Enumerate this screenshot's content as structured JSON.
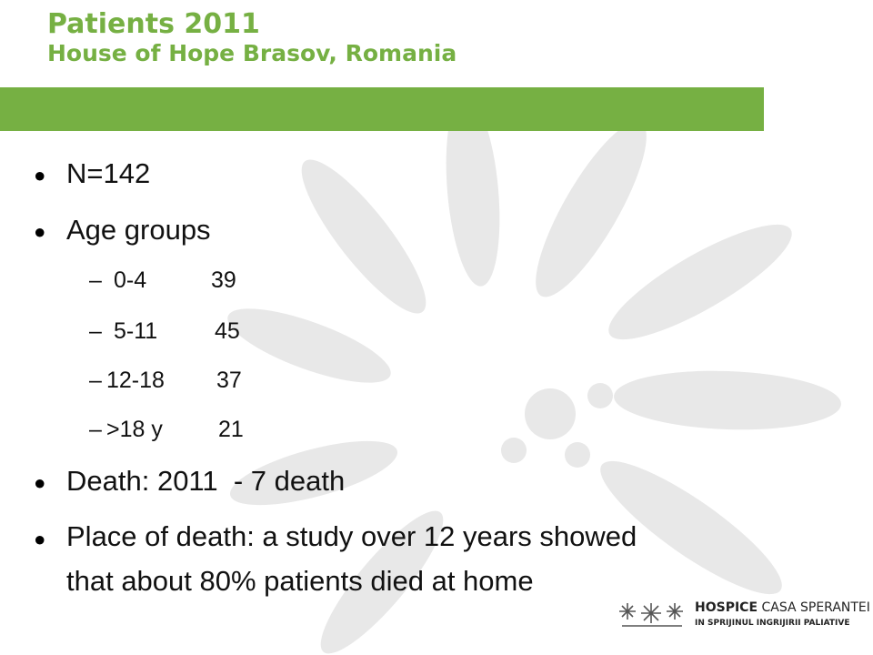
{
  "title": {
    "line1": "Patients 2011",
    "line2": "House of Hope Brasov, Romania"
  },
  "colors": {
    "accent": "#76b043",
    "flower": "#e6e6e6"
  },
  "bullets": {
    "n": "N=142",
    "age_groups": "Age groups",
    "age_rows": [
      {
        "label": "0-4",
        "value": "39"
      },
      {
        "label": "5-11",
        "value": "45"
      },
      {
        "label": "12-18",
        "value": "37"
      },
      {
        "label": ">18 y",
        "value": "21"
      }
    ],
    "death": "Death: 2011  - 7 death",
    "place_line1": "Place of death: a study over 12 years showed",
    "place_line2": "that about 80% patients died at home"
  },
  "dash": "–",
  "bullet_glyph": "•",
  "logo": {
    "name_bold": "HOSPICE",
    "name_rest": " CASA SPERANTEI",
    "tagline": "IN SPRIJINUL INGRIJIRII PALIATIVE",
    "icon": "three-flowers-icon"
  }
}
